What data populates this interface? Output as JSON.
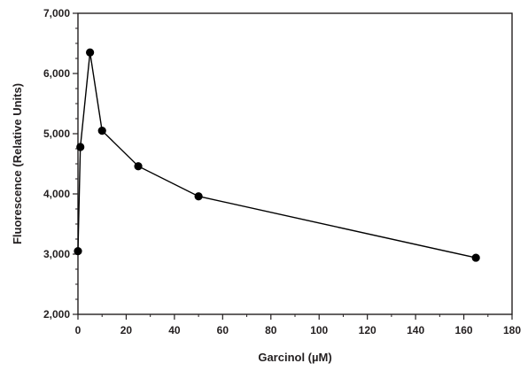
{
  "chart_data": {
    "type": "line",
    "title": "",
    "xlabel": "Garcinol (µM)",
    "ylabel": "Fluorescence (Relative Units)",
    "xlim": [
      0,
      180
    ],
    "ylim": [
      2000,
      7000
    ],
    "x_ticks": [
      0,
      20,
      40,
      60,
      80,
      100,
      120,
      140,
      160,
      180
    ],
    "x_tick_labels": [
      "0",
      "20",
      "40",
      "60",
      "80",
      "100",
      "120",
      "140",
      "160",
      "180"
    ],
    "y_ticks": [
      2000,
      3000,
      4000,
      5000,
      6000,
      7000
    ],
    "y_tick_labels": [
      "2,000",
      "3,000",
      "4,000",
      "5,000",
      "6,000",
      "7,000"
    ],
    "grid": false,
    "legend": "none",
    "series": [
      {
        "color": "#000000",
        "marker": "circle",
        "x": [
          0,
          1,
          5,
          10,
          25,
          50,
          165
        ],
        "y": [
          3050,
          4780,
          6350,
          5050,
          4460,
          3960,
          2940
        ]
      }
    ]
  }
}
